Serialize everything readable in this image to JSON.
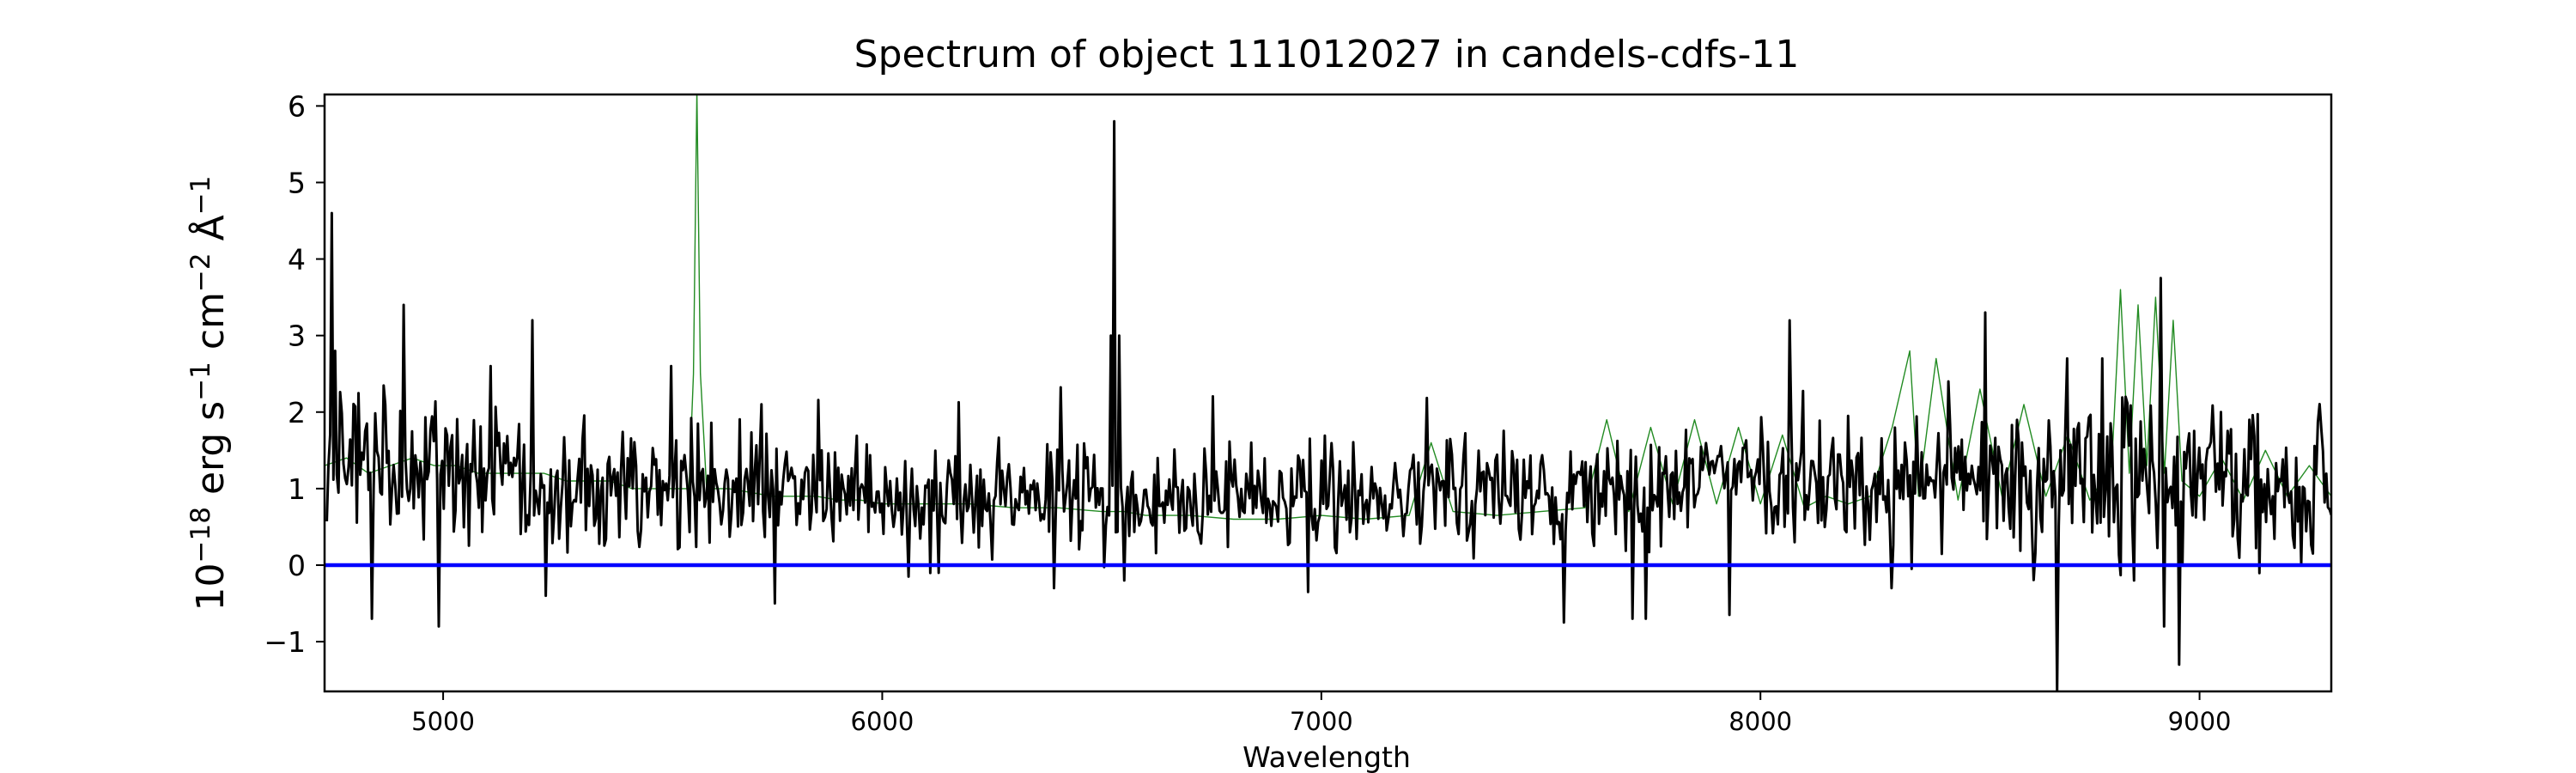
{
  "chart_data": {
    "type": "line",
    "title": "Spectrum of object 111012027 in candels-cdfs-11",
    "xlabel": "Wavelength",
    "ylabel": "10^{-18} erg s^{-1} cm^{-2} Å^{-1}",
    "ylabel_parts": {
      "base": "10",
      "exp1": "−18",
      "erg": " erg s",
      "exp2": "−1",
      "cm": " cm",
      "exp3": "−2",
      "ang": " Å",
      "exp4": "−1"
    },
    "xlim": [
      4730,
      9300
    ],
    "ylim": [
      -1.65,
      6.15
    ],
    "xticks": [
      5000,
      6000,
      7000,
      8000,
      9000
    ],
    "yticks": [
      -1,
      0,
      1,
      2,
      3,
      4,
      5,
      6
    ],
    "xtick_labels": [
      "5000",
      "6000",
      "7000",
      "8000",
      "9000"
    ],
    "ytick_labels": [
      "−1",
      "0",
      "1",
      "2",
      "3",
      "4",
      "5",
      "6"
    ],
    "grid": false,
    "series": [
      {
        "color": "#228b22",
        "style": "thin",
        "x": [
          4730,
          4780,
          4830,
          4880,
          4930,
          4980,
          5030,
          5080,
          5130,
          5180,
          5230,
          5280,
          5330,
          5380,
          5430,
          5480,
          5530,
          5560,
          5570,
          5578,
          5586,
          5600,
          5650,
          5700,
          5750,
          5800,
          5850,
          5900,
          5950,
          6000,
          6100,
          6200,
          6300,
          6400,
          6500,
          6550,
          6600,
          6700,
          6800,
          6900,
          7000,
          7100,
          7200,
          7250,
          7300,
          7400,
          7500,
          7600,
          7650,
          7700,
          7750,
          7800,
          7850,
          7900,
          7950,
          8000,
          8050,
          8100,
          8150,
          8200,
          8250,
          8300,
          8340,
          8360,
          8400,
          8450,
          8500,
          8550,
          8600,
          8650,
          8700,
          8750,
          8800,
          8820,
          8840,
          8860,
          8880,
          8900,
          8920,
          8940,
          8960,
          9000,
          9050,
          9100,
          9150,
          9200,
          9250,
          9300
        ],
        "y": [
          1.3,
          1.4,
          1.2,
          1.3,
          1.4,
          1.3,
          1.3,
          1.2,
          1.2,
          1.2,
          1.2,
          1.1,
          1.1,
          1.1,
          1.0,
          1.0,
          1.0,
          1.0,
          2.5,
          6.2,
          2.5,
          1.0,
          1.0,
          0.95,
          0.9,
          0.9,
          0.9,
          0.85,
          0.85,
          0.8,
          0.8,
          0.8,
          0.75,
          0.75,
          0.7,
          0.7,
          0.65,
          0.65,
          0.6,
          0.6,
          0.65,
          0.6,
          0.65,
          1.6,
          0.7,
          0.65,
          0.7,
          0.75,
          1.9,
          0.7,
          1.8,
          0.8,
          1.9,
          0.8,
          1.8,
          0.8,
          1.7,
          0.75,
          0.9,
          0.8,
          0.9,
          1.8,
          2.8,
          0.9,
          2.7,
          0.85,
          2.3,
          0.9,
          2.1,
          0.9,
          1.7,
          0.85,
          1.3,
          3.6,
          1.2,
          3.4,
          1.3,
          3.5,
          1.2,
          3.2,
          1.1,
          0.9,
          1.4,
          0.85,
          1.5,
          0.9,
          1.3,
          0.9
        ]
      },
      {
        "color": "#000000",
        "style": "thick",
        "seed": 111012027,
        "x_start": 4735,
        "x_end": 9300,
        "n_points": 1200,
        "baseline": [
          [
            4735,
            1.6
          ],
          [
            4800,
            1.3
          ],
          [
            5300,
            1.05
          ],
          [
            5700,
            1.0
          ],
          [
            6200,
            0.85
          ],
          [
            6500,
            0.85
          ],
          [
            6700,
            0.9
          ],
          [
            7000,
            0.9
          ],
          [
            7500,
            1.0
          ],
          [
            8000,
            1.05
          ],
          [
            8500,
            1.1
          ],
          [
            9000,
            1.1
          ],
          [
            9300,
            1.0
          ]
        ],
        "noise": [
          [
            4735,
            0.45
          ],
          [
            5300,
            0.42
          ],
          [
            6000,
            0.35
          ],
          [
            6500,
            0.3
          ],
          [
            7000,
            0.3
          ],
          [
            7600,
            0.33
          ],
          [
            8200,
            0.4
          ],
          [
            8700,
            0.55
          ],
          [
            9300,
            0.45
          ]
        ],
        "features": [
          {
            "x": 4745,
            "y": 4.6
          },
          {
            "x": 4755,
            "y": 2.8
          },
          {
            "x": 4838,
            "y": -0.7
          },
          {
            "x": 4910,
            "y": 3.4
          },
          {
            "x": 4990,
            "y": -0.8
          },
          {
            "x": 5110,
            "y": 2.6
          },
          {
            "x": 5205,
            "y": 3.2
          },
          {
            "x": 5235,
            "y": -0.4
          },
          {
            "x": 5520,
            "y": 2.6
          },
          {
            "x": 5755,
            "y": -0.5
          },
          {
            "x": 6060,
            "y": -0.15
          },
          {
            "x": 6130,
            "y": -0.1
          },
          {
            "x": 6390,
            "y": -0.3
          },
          {
            "x": 6522,
            "y": 3.0
          },
          {
            "x": 6530,
            "y": 5.8
          },
          {
            "x": 6538,
            "y": 3.0
          },
          {
            "x": 6550,
            "y": -0.2
          },
          {
            "x": 6970,
            "y": -0.35
          },
          {
            "x": 7710,
            "y": -0.7
          },
          {
            "x": 7740,
            "y": -0.7
          },
          {
            "x": 7930,
            "y": -0.65
          },
          {
            "x": 8300,
            "y": -0.3
          },
          {
            "x": 8430,
            "y": 2.4
          },
          {
            "x": 8510,
            "y": 3.3
          },
          {
            "x": 8700,
            "y": 2.7
          },
          {
            "x": 8780,
            "y": 2.7
          },
          {
            "x": 8830,
            "y": 2.2
          },
          {
            "x": 8850,
            "y": -0.2
          },
          {
            "x": 8910,
            "y": 3.75
          },
          {
            "x": 8920,
            "y": -0.8
          },
          {
            "x": 8955,
            "y": -1.3
          },
          {
            "x": 9050,
            "y": 2.0
          }
        ]
      },
      {
        "color": "#0000ff",
        "style": "zero-line",
        "x": [
          4730,
          9300
        ],
        "y": [
          0,
          0
        ]
      }
    ]
  }
}
